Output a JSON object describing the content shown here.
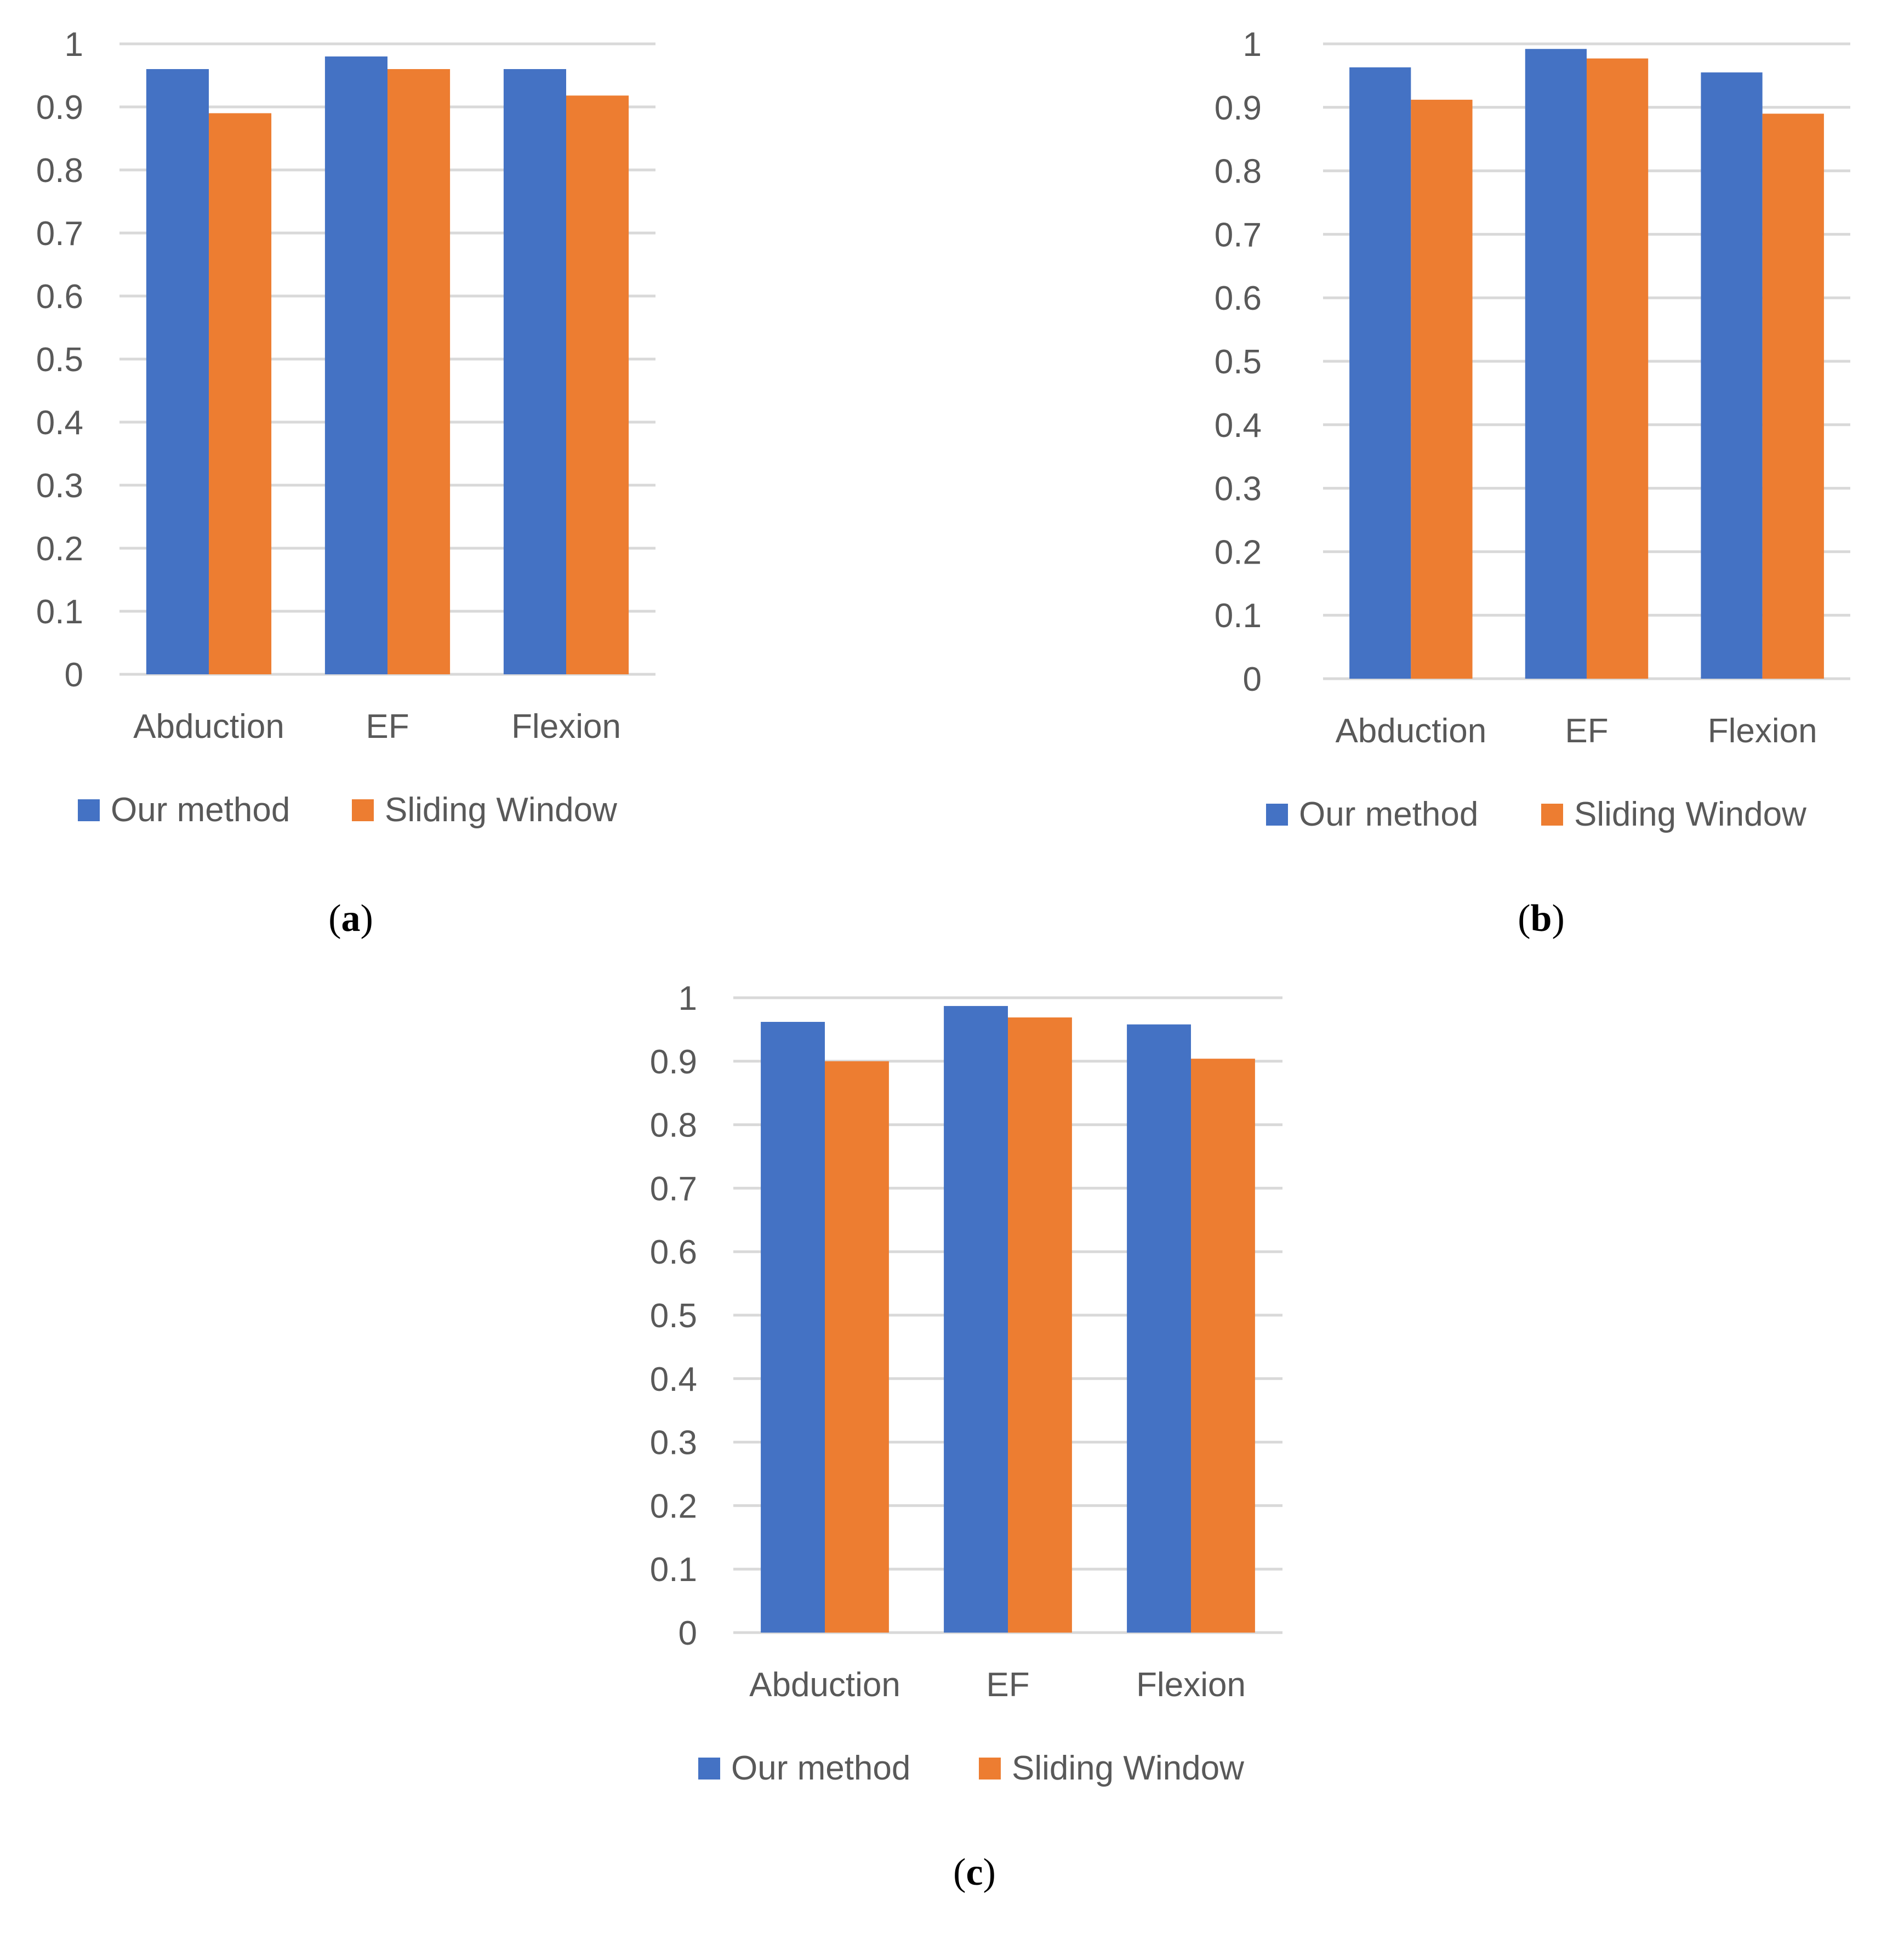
{
  "colors": {
    "series_0": "#4472C4",
    "series_1": "#ED7D31",
    "grid": "#D9D9D9",
    "text": "#595959"
  },
  "chart_data": [
    {
      "type": "bar",
      "panel": "a",
      "categories": [
        "Abduction",
        "EF",
        "Flexion"
      ],
      "series": [
        {
          "name": "Our method",
          "values": [
            0.96,
            0.98,
            0.96
          ]
        },
        {
          "name": "Sliding Window",
          "values": [
            0.89,
            0.96,
            0.918
          ]
        }
      ],
      "yticks": [
        "0",
        "0.1",
        "0.2",
        "0.3",
        "0.4",
        "0.5",
        "0.6",
        "0.7",
        "0.8",
        "0.9",
        "1"
      ],
      "ylim": [
        0,
        1
      ],
      "grid": true,
      "legend": "bottom"
    },
    {
      "type": "bar",
      "panel": "b",
      "categories": [
        "Abduction",
        "EF",
        "Flexion"
      ],
      "series": [
        {
          "name": "Our method",
          "values": [
            0.963,
            0.992,
            0.955
          ]
        },
        {
          "name": "Sliding Window",
          "values": [
            0.912,
            0.977,
            0.89
          ]
        }
      ],
      "yticks": [
        "0",
        "0.1",
        "0.2",
        "0.3",
        "0.4",
        "0.5",
        "0.6",
        "0.7",
        "0.8",
        "0.9",
        "1"
      ],
      "ylim": [
        0,
        1
      ],
      "grid": true,
      "legend": "bottom"
    },
    {
      "type": "bar",
      "panel": "c",
      "categories": [
        "Abduction",
        "EF",
        "Flexion"
      ],
      "series": [
        {
          "name": "Our method",
          "values": [
            0.962,
            0.987,
            0.958
          ]
        },
        {
          "name": "Sliding Window",
          "values": [
            0.9,
            0.969,
            0.904
          ]
        }
      ],
      "yticks": [
        "0",
        "0.1",
        "0.2",
        "0.3",
        "0.4",
        "0.5",
        "0.6",
        "0.7",
        "0.8",
        "0.9",
        "1"
      ],
      "ylim": [
        0,
        1
      ],
      "grid": true,
      "legend": "bottom"
    }
  ],
  "captions": {
    "a": "a",
    "b": "b",
    "c": "c"
  }
}
